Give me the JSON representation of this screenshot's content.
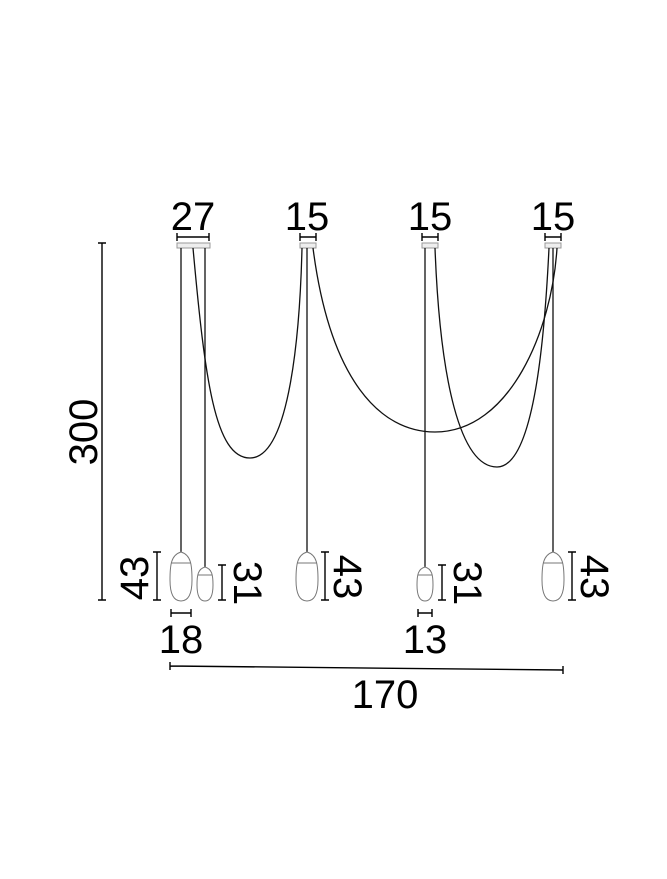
{
  "dimensions": {
    "canopy_widths": [
      "27",
      "15",
      "15",
      "15"
    ],
    "total_height": "300",
    "large_shade_height_left": "43",
    "small_shade_height_1": "31",
    "large_shade_height_2": "43",
    "small_shade_height_2": "31",
    "large_shade_height_3": "43",
    "large_shade_diameter": "18",
    "small_shade_diameter": "13",
    "total_width": "170"
  },
  "colors": {
    "line": "#000000",
    "shade_outline": "#777777"
  }
}
